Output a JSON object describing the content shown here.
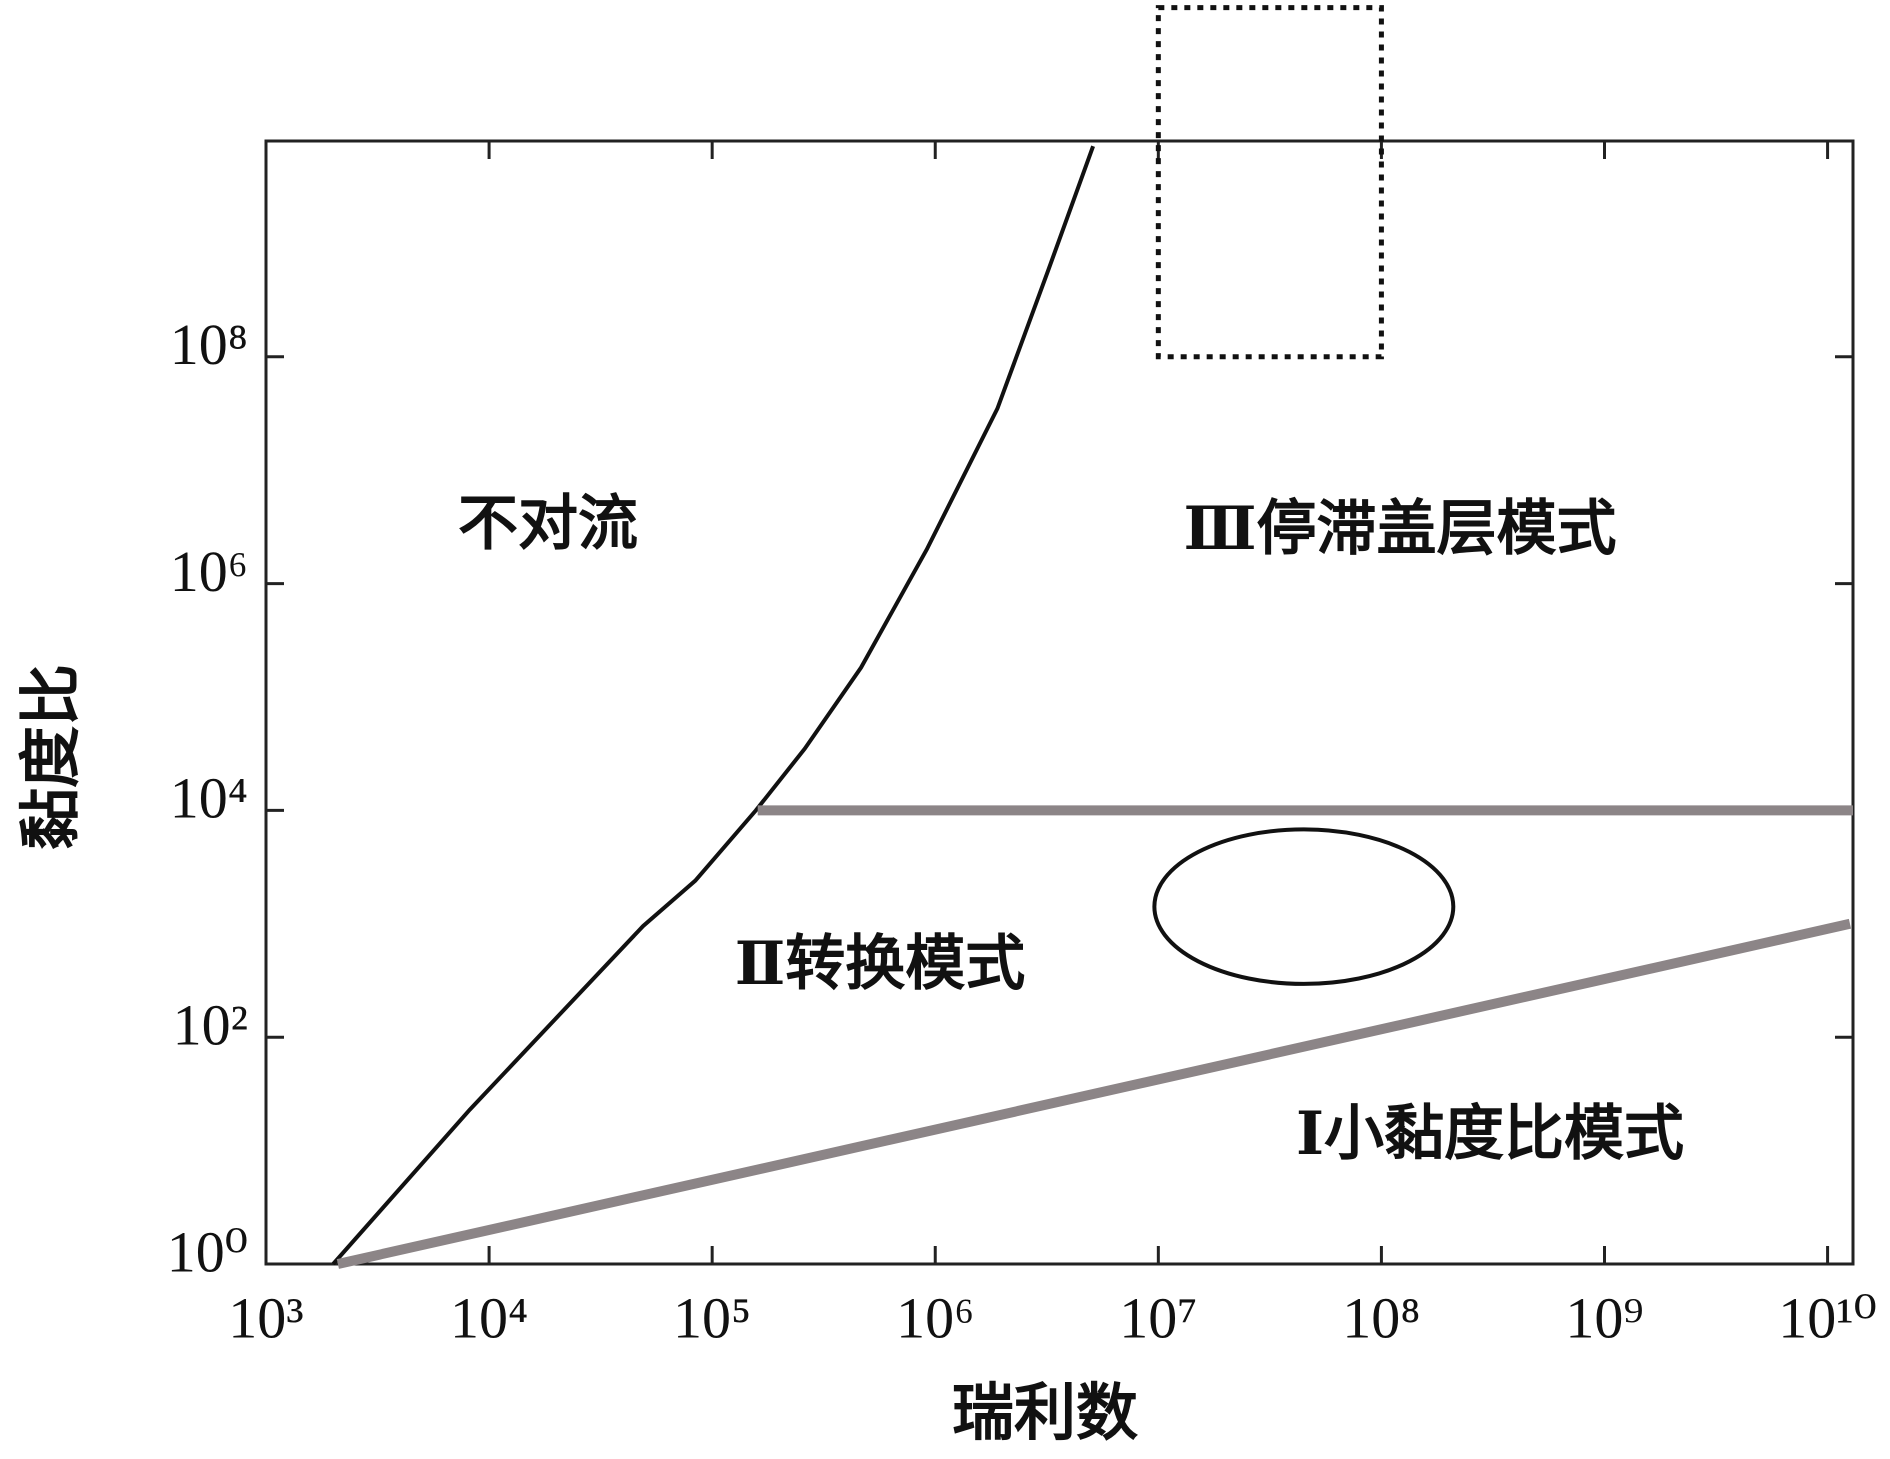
{
  "chart_data": {
    "type": "line",
    "xlabel": "瑞利数",
    "ylabel": "黏度比",
    "xscale": "log",
    "yscale": "log",
    "xlim": [
      1000,
      13000000000
    ],
    "ylim": [
      1,
      8000000000
    ],
    "xticks": [
      {
        "value": 1000,
        "label": "10³"
      },
      {
        "value": 10000,
        "label": "10⁴"
      },
      {
        "value": 100000,
        "label": "10⁵"
      },
      {
        "value": 1000000,
        "label": "10⁶"
      },
      {
        "value": 10000000,
        "label": "10⁷"
      },
      {
        "value": 100000000,
        "label": "10⁸"
      },
      {
        "value": 1000000000,
        "label": "10⁹"
      },
      {
        "value": 10000000000,
        "label": "10¹⁰"
      }
    ],
    "yticks": [
      {
        "value": 1,
        "label": "10⁰"
      },
      {
        "value": 100,
        "label": "10²"
      },
      {
        "value": 10000,
        "label": "10⁴"
      },
      {
        "value": 1000000,
        "label": "10⁶"
      },
      {
        "value": 100000000,
        "label": "10⁸"
      }
    ],
    "series": [
      {
        "color": "#111111",
        "x": [
          2000,
          8200,
          49000,
          84000,
          157000,
          260000,
          465000,
          916000,
          1900000,
          3200000,
          5100000
        ],
        "values": [
          1,
          23,
          955,
          2400,
          10000,
          35000,
          182000,
          2000000,
          35000000,
          570000000,
          7200000000
        ]
      },
      {
        "color": "#8c8587",
        "x": [
          160000,
          13000000000
        ],
        "values": [
          10000,
          10000
        ]
      },
      {
        "color": "#8c8587",
        "x": [
          2100,
          12600000000
        ],
        "values": [
          1,
          1000
        ]
      }
    ],
    "shapes": [
      {
        "type": "rect",
        "xrange": [
          10000000,
          100000000
        ],
        "yrange": [
          100000000,
          120000000000
        ]
      },
      {
        "type": "ellipse",
        "xrange": [
          9600000,
          210000000
        ],
        "yrange": [
          295,
          6800
        ]
      }
    ],
    "annotations": [
      "不对流",
      "Ⅲ停滞盖层模式",
      "Ⅱ转换模式",
      "Ⅰ小黏度比模式"
    ]
  }
}
